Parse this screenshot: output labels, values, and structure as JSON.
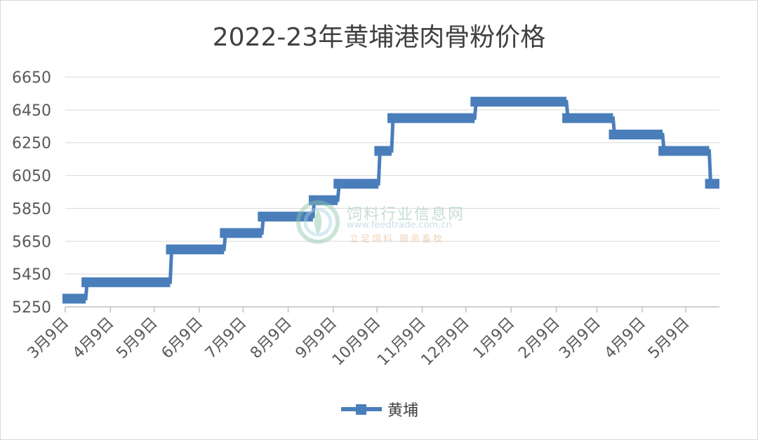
{
  "chart_data": {
    "type": "line",
    "title": "2022-23年黄埔港肉骨粉价格",
    "ylim": [
      5250,
      6650
    ],
    "y_ticks": [
      5250,
      5450,
      5650,
      5850,
      6050,
      6250,
      6450,
      6650
    ],
    "x_tick_labels": [
      "3月9日",
      "4月9日",
      "5月9日",
      "6月9日",
      "7月9日",
      "8月9日",
      "9月9日",
      "10月9日",
      "11月9日",
      "12月9日",
      "1月9日",
      "2月9日",
      "3月9日",
      "4月9日",
      "5月9日"
    ],
    "x_start": "2022-03-09",
    "x_end": "2023-06-01",
    "grid": "horizontal",
    "legend": "bottom",
    "series": [
      {
        "name": "黄埔",
        "color": "#4a7ebb",
        "points": [
          {
            "x": "2022-03-09",
            "y": 5300
          },
          {
            "x": "2022-03-23",
            "y": 5300
          },
          {
            "x": "2022-03-24",
            "y": 5400
          },
          {
            "x": "2022-05-20",
            "y": 5400
          },
          {
            "x": "2022-05-21",
            "y": 5600
          },
          {
            "x": "2022-06-26",
            "y": 5600
          },
          {
            "x": "2022-06-27",
            "y": 5700
          },
          {
            "x": "2022-07-22",
            "y": 5700
          },
          {
            "x": "2022-07-23",
            "y": 5800
          },
          {
            "x": "2022-08-26",
            "y": 5800
          },
          {
            "x": "2022-08-27",
            "y": 5900
          },
          {
            "x": "2022-09-12",
            "y": 5900
          },
          {
            "x": "2022-09-13",
            "y": 6000
          },
          {
            "x": "2022-10-10",
            "y": 6000
          },
          {
            "x": "2022-10-11",
            "y": 6200
          },
          {
            "x": "2022-10-19",
            "y": 6200
          },
          {
            "x": "2022-10-20",
            "y": 6400
          },
          {
            "x": "2022-12-15",
            "y": 6400
          },
          {
            "x": "2022-12-16",
            "y": 6500
          },
          {
            "x": "2023-02-16",
            "y": 6500
          },
          {
            "x": "2023-02-17",
            "y": 6400
          },
          {
            "x": "2023-03-20",
            "y": 6400
          },
          {
            "x": "2023-03-21",
            "y": 6300
          },
          {
            "x": "2023-04-23",
            "y": 6300
          },
          {
            "x": "2023-04-24",
            "y": 6200
          },
          {
            "x": "2023-05-25",
            "y": 6200
          },
          {
            "x": "2023-05-26",
            "y": 6000
          },
          {
            "x": "2023-06-01",
            "y": 6000
          }
        ]
      }
    ]
  },
  "watermark": {
    "name": "饲料行业信息网",
    "url": "www.feedtrade.com.cn",
    "slogan": "立足饲料 服务畜牧"
  }
}
